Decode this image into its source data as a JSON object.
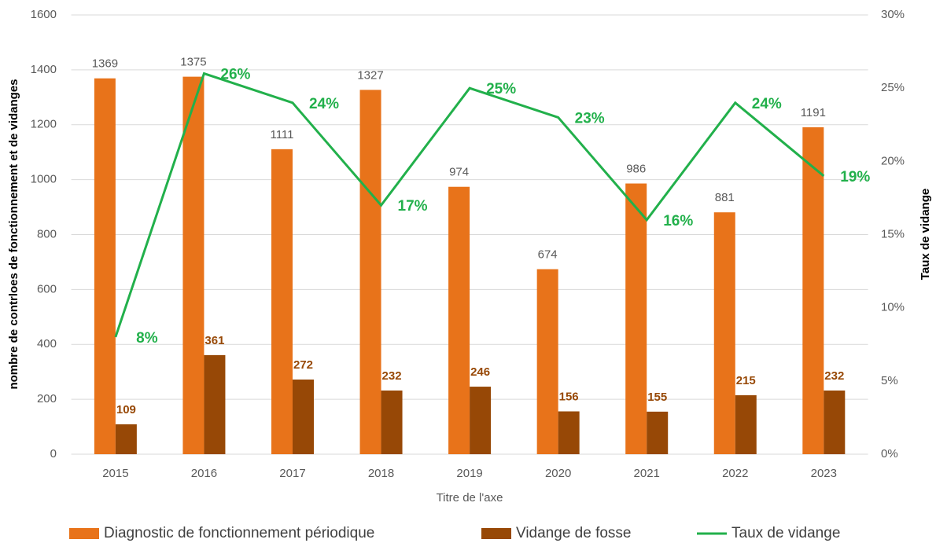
{
  "chart_data": {
    "type": "bar",
    "x_label": "Titre de l'axe",
    "y_label": "nombre de contrloes de fonctionnement et de vidanges",
    "y2_label": "Taux de vidange",
    "categories": [
      "2015",
      "2016",
      "2017",
      "2018",
      "2019",
      "2020",
      "2021",
      "2022",
      "2023"
    ],
    "series": [
      {
        "name": "Diagnostic de fonctionnement périodique",
        "color": "#e8731a",
        "values": [
          1369,
          1375,
          1111,
          1327,
          974,
          674,
          986,
          881,
          1191
        ]
      },
      {
        "name": "Vidange de fosse",
        "color": "#974806",
        "values": [
          109,
          361,
          272,
          232,
          246,
          156,
          155,
          215,
          232
        ]
      },
      {
        "name": "Taux de vidange",
        "type": "line",
        "axis": "y2",
        "color": "#22b04b",
        "values": [
          8,
          26,
          24,
          17,
          25,
          23,
          16,
          24,
          19
        ],
        "value_labels": [
          "8%",
          "26%",
          "24%",
          "17%",
          "25%",
          "23%",
          "16%",
          "24%",
          "19%"
        ]
      }
    ],
    "ylim": [
      0,
      1600
    ],
    "yticks": [
      0,
      200,
      400,
      600,
      800,
      1000,
      1200,
      1400,
      1600
    ],
    "y2lim": [
      0,
      30
    ],
    "y2ticks": [
      {
        "value": 0,
        "label": "0%"
      },
      {
        "value": 5,
        "label": "5%"
      },
      {
        "value": 10,
        "label": "10%"
      },
      {
        "value": 15,
        "label": "15%"
      },
      {
        "value": 20,
        "label": "20%"
      },
      {
        "value": 25,
        "label": "25%"
      },
      {
        "value": 30,
        "label": "30%"
      }
    ],
    "grid": true,
    "legend": "bottom"
  }
}
